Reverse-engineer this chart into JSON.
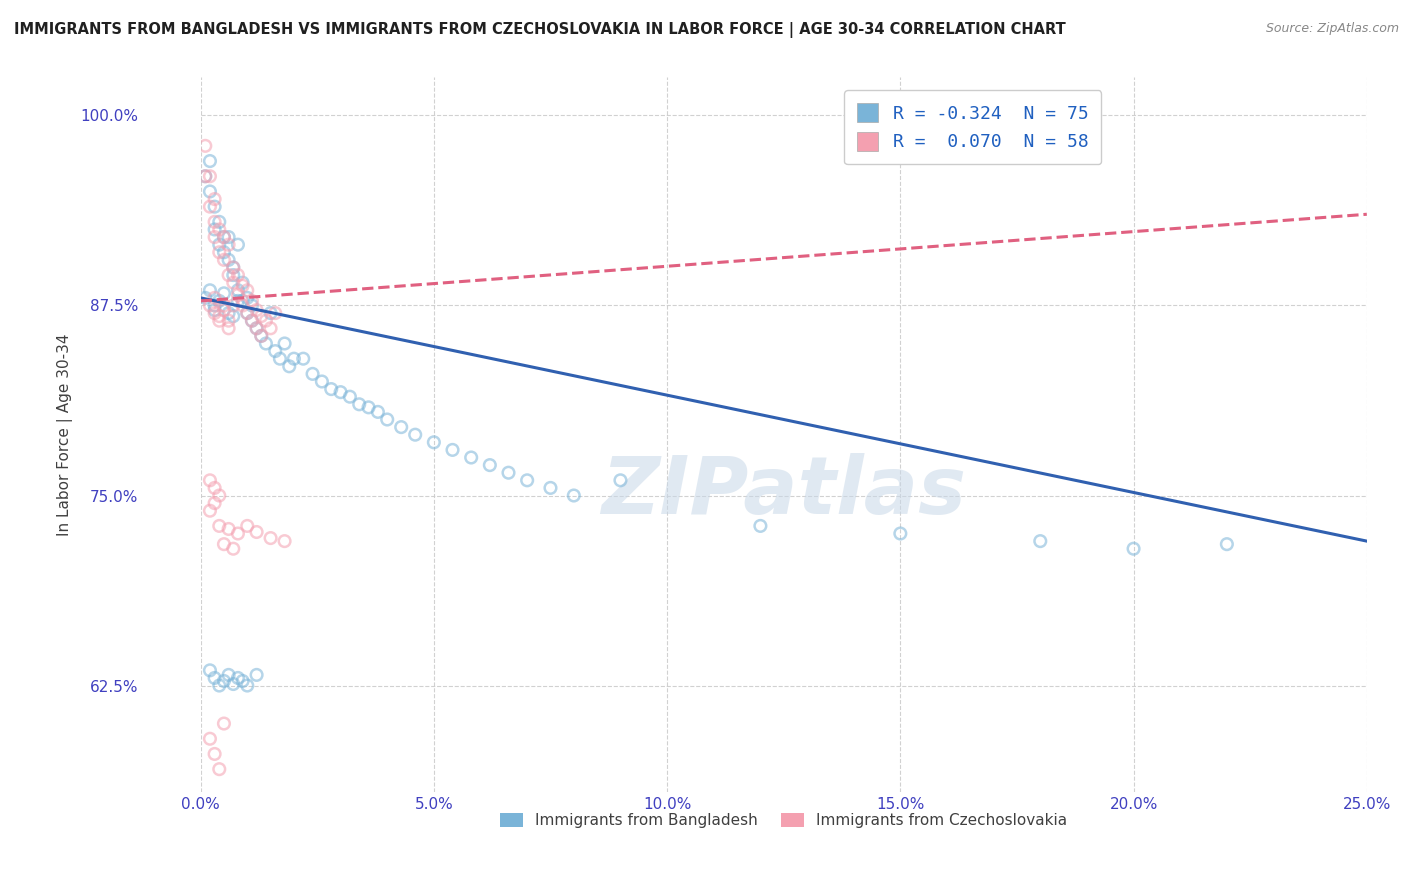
{
  "title": "IMMIGRANTS FROM BANGLADESH VS IMMIGRANTS FROM CZECHOSLOVAKIA IN LABOR FORCE | AGE 30-34 CORRELATION CHART",
  "source": "Source: ZipAtlas.com",
  "ylabel": "In Labor Force | Age 30-34",
  "xlim": [
    0.0,
    0.25
  ],
  "ylim": [
    0.555,
    1.025
  ],
  "xticks": [
    0.0,
    0.05,
    0.1,
    0.15,
    0.2,
    0.25
  ],
  "yticks": [
    0.625,
    0.75,
    0.875,
    1.0
  ],
  "ytick_labels": [
    "62.5%",
    "75.0%",
    "87.5%",
    "100.0%"
  ],
  "xtick_labels": [
    "0.0%",
    "5.0%",
    "10.0%",
    "15.0%",
    "20.0%",
    "25.0%"
  ],
  "legend_label1": "R = -0.324  N = 75",
  "legend_label2": "R =  0.070  N = 58",
  "legend_color1": "#7ab4d8",
  "legend_color2": "#f4a0b0",
  "bangladesh_color": "#7ab4d8",
  "czechoslovakia_color": "#f4a0b0",
  "trend_bd_color": "#3060b0",
  "trend_cz_color": "#e06080",
  "trend_bd_x0": 0.0,
  "trend_bd_x1": 0.25,
  "trend_bd_y0": 0.88,
  "trend_bd_y1": 0.72,
  "trend_cz_x0": 0.0,
  "trend_cz_x1": 0.25,
  "trend_cz_y0": 0.878,
  "trend_cz_y1": 0.935,
  "watermark": "ZIPatlas",
  "watermark_color": "#c8d8e8",
  "background_color": "#ffffff",
  "grid_color": "#cccccc",
  "title_color": "#202020",
  "axis_tick_color": "#4040c0",
  "dot_size": 70,
  "dot_alpha": 0.55,
  "bangladesh_x": [
    0.001,
    0.002,
    0.002,
    0.003,
    0.003,
    0.004,
    0.004,
    0.005,
    0.005,
    0.006,
    0.006,
    0.007,
    0.007,
    0.008,
    0.008,
    0.009,
    0.009,
    0.01,
    0.01,
    0.011,
    0.011,
    0.012,
    0.013,
    0.014,
    0.015,
    0.016,
    0.017,
    0.018,
    0.019,
    0.02,
    0.022,
    0.024,
    0.026,
    0.028,
    0.03,
    0.032,
    0.034,
    0.036,
    0.038,
    0.04,
    0.043,
    0.046,
    0.05,
    0.054,
    0.058,
    0.062,
    0.066,
    0.07,
    0.075,
    0.08,
    0.002,
    0.003,
    0.004,
    0.005,
    0.006,
    0.007,
    0.008,
    0.009,
    0.01,
    0.012,
    0.001,
    0.002,
    0.003,
    0.004,
    0.003,
    0.005,
    0.006,
    0.007,
    0.008,
    0.12,
    0.15,
    0.18,
    0.2,
    0.22,
    0.09
  ],
  "bangladesh_y": [
    0.96,
    0.97,
    0.95,
    0.94,
    0.925,
    0.915,
    0.93,
    0.92,
    0.91,
    0.92,
    0.905,
    0.9,
    0.895,
    0.915,
    0.885,
    0.89,
    0.878,
    0.88,
    0.87,
    0.875,
    0.865,
    0.86,
    0.855,
    0.85,
    0.87,
    0.845,
    0.84,
    0.85,
    0.835,
    0.84,
    0.84,
    0.83,
    0.825,
    0.82,
    0.818,
    0.815,
    0.81,
    0.808,
    0.805,
    0.8,
    0.795,
    0.79,
    0.785,
    0.78,
    0.775,
    0.77,
    0.765,
    0.76,
    0.755,
    0.75,
    0.635,
    0.63,
    0.625,
    0.628,
    0.632,
    0.626,
    0.63,
    0.628,
    0.625,
    0.632,
    0.88,
    0.885,
    0.875,
    0.878,
    0.872,
    0.883,
    0.87,
    0.868,
    0.878,
    0.73,
    0.725,
    0.72,
    0.715,
    0.718,
    0.76
  ],
  "czechoslovakia_x": [
    0.001,
    0.001,
    0.002,
    0.002,
    0.003,
    0.003,
    0.003,
    0.004,
    0.004,
    0.005,
    0.005,
    0.006,
    0.006,
    0.007,
    0.007,
    0.008,
    0.008,
    0.009,
    0.009,
    0.01,
    0.01,
    0.011,
    0.011,
    0.012,
    0.012,
    0.013,
    0.013,
    0.014,
    0.015,
    0.016,
    0.002,
    0.003,
    0.004,
    0.003,
    0.005,
    0.004,
    0.006,
    0.005,
    0.007,
    0.006,
    0.002,
    0.003,
    0.002,
    0.003,
    0.004,
    0.004,
    0.006,
    0.008,
    0.01,
    0.012,
    0.015,
    0.018,
    0.005,
    0.007,
    0.002,
    0.003,
    0.004,
    0.005
  ],
  "czechoslovakia_y": [
    0.98,
    0.96,
    0.96,
    0.94,
    0.945,
    0.93,
    0.92,
    0.925,
    0.91,
    0.92,
    0.905,
    0.915,
    0.895,
    0.9,
    0.89,
    0.895,
    0.882,
    0.888,
    0.875,
    0.885,
    0.87,
    0.878,
    0.865,
    0.872,
    0.86,
    0.868,
    0.855,
    0.865,
    0.86,
    0.87,
    0.875,
    0.87,
    0.865,
    0.88,
    0.875,
    0.868,
    0.86,
    0.872,
    0.875,
    0.865,
    0.76,
    0.755,
    0.74,
    0.745,
    0.75,
    0.73,
    0.728,
    0.725,
    0.73,
    0.726,
    0.722,
    0.72,
    0.718,
    0.715,
    0.59,
    0.58,
    0.57,
    0.6
  ]
}
